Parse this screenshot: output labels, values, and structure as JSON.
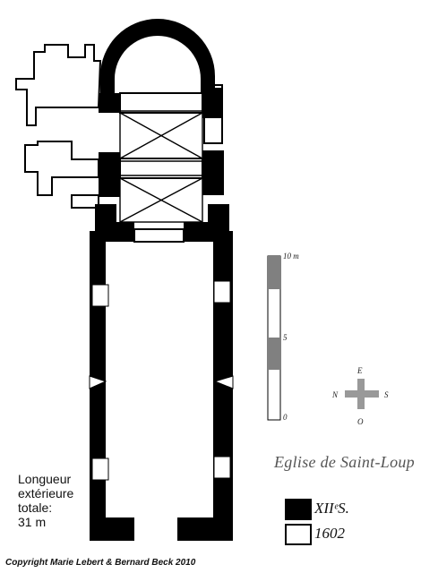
{
  "caption": {
    "title": "Eglise de Saint-Loup",
    "length_note": [
      "Longueur",
      "extérieure",
      "totale:",
      "31 m"
    ],
    "copyright": "Copyright Marie Lebert & Bernard Beck 2010"
  },
  "scale_bar": {
    "labels": [
      "10 m",
      "5",
      "0"
    ]
  },
  "compass": {
    "north": "N",
    "east": "E",
    "south": "S",
    "west": "O"
  },
  "legend": [
    {
      "label": "XIIᵉS.",
      "color": "#000000"
    },
    {
      "label": "1602",
      "color": "#ffffff"
    }
  ]
}
